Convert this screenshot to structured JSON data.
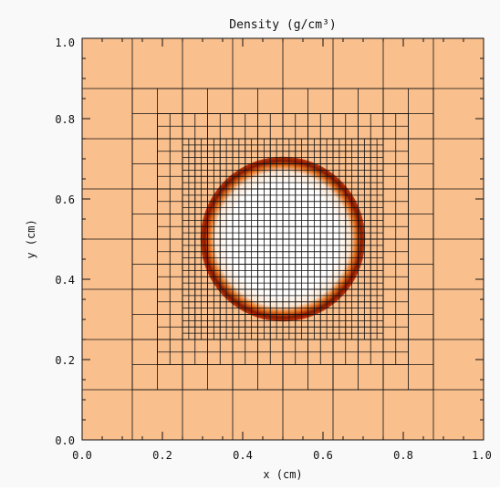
{
  "chart_data": {
    "type": "heatmap",
    "title": "Density (g/cm³)",
    "xlabel": "x (cm)",
    "ylabel": "y (cm)",
    "xlim": [
      0.0,
      1.0
    ],
    "ylim": [
      0.0,
      1.0
    ],
    "x_ticks": [
      "0.0",
      "0.2",
      "0.4",
      "0.6",
      "0.8",
      "1.0"
    ],
    "y_ticks": [
      "0.0",
      "0.2",
      "0.4",
      "0.6",
      "0.8",
      "1.0"
    ],
    "background_color": "#f9bf8d",
    "mesh_color": "#111111",
    "ring_colors": [
      "#fce6d2",
      "#e8741f",
      "#c43a0c",
      "#8a1900"
    ],
    "inner_color": "#ffffff",
    "sphere": {
      "center": [
        0.5,
        0.5
      ],
      "radius": 0.205
    },
    "amr_mesh": {
      "base_level": 3,
      "refinement": [
        {
          "level": 4,
          "x": [
            0.125,
            0.875
          ],
          "y": [
            0.125,
            0.875
          ]
        },
        {
          "level": 5,
          "x": [
            0.1875,
            0.8125
          ],
          "y": [
            0.1875,
            0.8125
          ]
        },
        {
          "level": 6,
          "x": [
            0.25,
            0.75
          ],
          "y": [
            0.25,
            0.75
          ]
        }
      ]
    }
  }
}
